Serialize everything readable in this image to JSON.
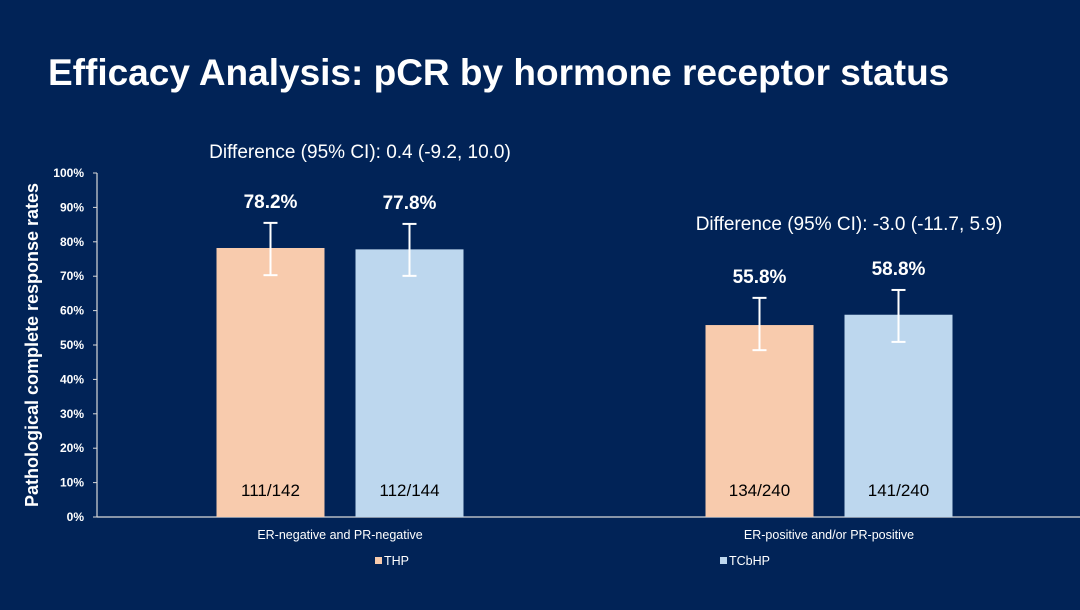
{
  "title": "Efficacy Analysis: pCR by hormone receptor status",
  "chart_data": {
    "type": "bar",
    "ylabel": "Pathological complete response rates",
    "xlabel": "",
    "ylim": [
      0,
      100
    ],
    "yticks": [
      "0%",
      "10%",
      "20%",
      "30%",
      "40%",
      "50%",
      "60%",
      "70%",
      "80%",
      "90%",
      "100%"
    ],
    "categories": [
      "ER-negative and PR-negative",
      "ER-positive and/or PR-positive"
    ],
    "series": [
      {
        "name": "THP",
        "color": "#f8cbad",
        "values": [
          78.2,
          55.8
        ],
        "labels": [
          "78.2%",
          "55.8%"
        ],
        "counts": [
          "111/142",
          "134/240"
        ],
        "ci_low": [
          70.3,
          48.5
        ],
        "ci_high": [
          85.5,
          63.7
        ]
      },
      {
        "name": "TCbHP",
        "color": "#bdd7ee",
        "values": [
          77.8,
          58.8
        ],
        "labels": [
          "77.8%",
          "58.8%"
        ],
        "counts": [
          "112/144",
          "141/240"
        ],
        "ci_low": [
          70.1,
          50.9
        ],
        "ci_high": [
          85.2,
          66.0
        ]
      }
    ],
    "annotations": [
      "Difference (95% CI): 0.4 (-9.2, 10.0)",
      "Difference (95% CI): -3.0 (-11.7, 5.9)"
    ],
    "legend_position": "bottom",
    "grid": false
  }
}
